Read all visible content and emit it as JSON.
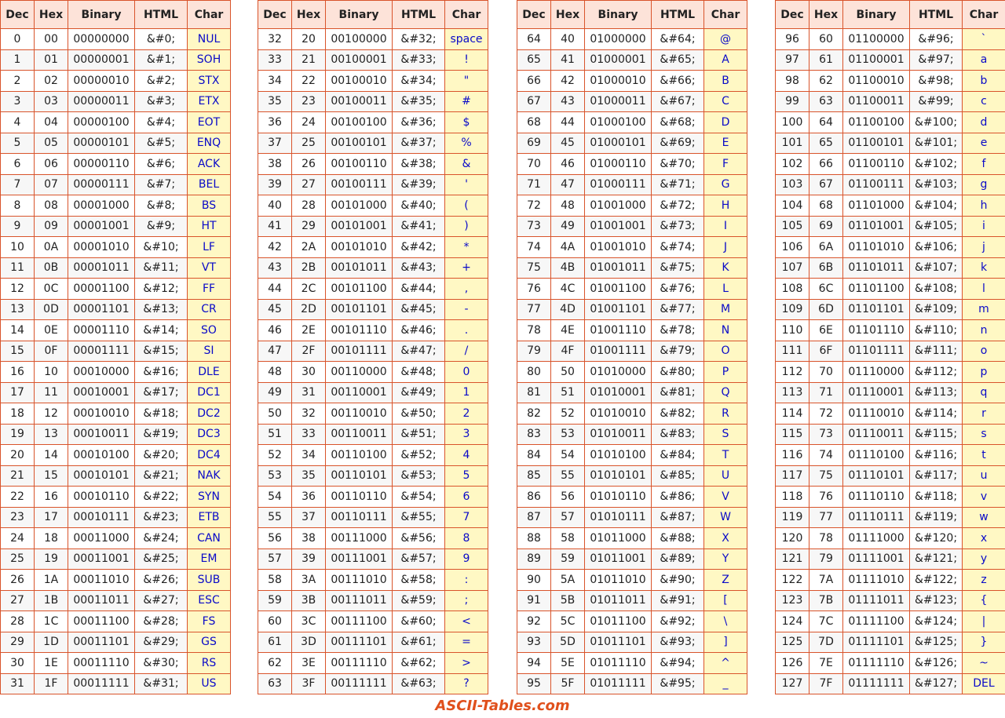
{
  "tables": [
    {
      "header": [
        "Dec",
        "Hex",
        "Binary",
        "HTML",
        "Char"
      ],
      "rows": [
        [
          "0",
          "00",
          "00000000",
          "&#0;",
          "NUL"
        ],
        [
          "1",
          "01",
          "00000001",
          "&#1;",
          "SOH"
        ],
        [
          "2",
          "02",
          "00000010",
          "&#2;",
          "STX"
        ],
        [
          "3",
          "03",
          "00000011",
          "&#3;",
          "ETX"
        ],
        [
          "4",
          "04",
          "00000100",
          "&#4;",
          "EOT"
        ],
        [
          "5",
          "05",
          "00000101",
          "&#5;",
          "ENQ"
        ],
        [
          "6",
          "06",
          "00000110",
          "&#6;",
          "ACK"
        ],
        [
          "7",
          "07",
          "00000111",
          "&#7;",
          "BEL"
        ],
        [
          "8",
          "08",
          "00001000",
          "&#8;",
          "BS"
        ],
        [
          "9",
          "09",
          "00001001",
          "&#9;",
          "HT"
        ],
        [
          "10",
          "0A",
          "00001010",
          "&#10;",
          "LF"
        ],
        [
          "11",
          "0B",
          "00001011",
          "&#11;",
          "VT"
        ],
        [
          "12",
          "0C",
          "00001100",
          "&#12;",
          "FF"
        ],
        [
          "13",
          "0D",
          "00001101",
          "&#13;",
          "CR"
        ],
        [
          "14",
          "0E",
          "00001110",
          "&#14;",
          "SO"
        ],
        [
          "15",
          "0F",
          "00001111",
          "&#15;",
          "SI"
        ],
        [
          "16",
          "10",
          "00010000",
          "&#16;",
          "DLE"
        ],
        [
          "17",
          "11",
          "00010001",
          "&#17;",
          "DC1"
        ],
        [
          "18",
          "12",
          "00010010",
          "&#18;",
          "DC2"
        ],
        [
          "19",
          "13",
          "00010011",
          "&#19;",
          "DC3"
        ],
        [
          "20",
          "14",
          "00010100",
          "&#20;",
          "DC4"
        ],
        [
          "21",
          "15",
          "00010101",
          "&#21;",
          "NAK"
        ],
        [
          "22",
          "16",
          "00010110",
          "&#22;",
          "SYN"
        ],
        [
          "23",
          "17",
          "00010111",
          "&#23;",
          "ETB"
        ],
        [
          "24",
          "18",
          "00011000",
          "&#24;",
          "CAN"
        ],
        [
          "25",
          "19",
          "00011001",
          "&#25;",
          "EM"
        ],
        [
          "26",
          "1A",
          "00011010",
          "&#26;",
          "SUB"
        ],
        [
          "27",
          "1B",
          "00011011",
          "&#27;",
          "ESC"
        ],
        [
          "28",
          "1C",
          "00011100",
          "&#28;",
          "FS"
        ],
        [
          "29",
          "1D",
          "00011101",
          "&#29;",
          "GS"
        ],
        [
          "30",
          "1E",
          "00011110",
          "&#30;",
          "RS"
        ],
        [
          "31",
          "1F",
          "00011111",
          "&#31;",
          "US"
        ]
      ]
    },
    {
      "header": [
        "Dec",
        "Hex",
        "Binary",
        "HTML",
        "Char"
      ],
      "rows": [
        [
          "32",
          "20",
          "00100000",
          "&#32;",
          "space"
        ],
        [
          "33",
          "21",
          "00100001",
          "&#33;",
          "!"
        ],
        [
          "34",
          "22",
          "00100010",
          "&#34;",
          "\""
        ],
        [
          "35",
          "23",
          "00100011",
          "&#35;",
          "#"
        ],
        [
          "36",
          "24",
          "00100100",
          "&#36;",
          "$"
        ],
        [
          "37",
          "25",
          "00100101",
          "&#37;",
          "%"
        ],
        [
          "38",
          "26",
          "00100110",
          "&#38;",
          "&"
        ],
        [
          "39",
          "27",
          "00100111",
          "&#39;",
          "'"
        ],
        [
          "40",
          "28",
          "00101000",
          "&#40;",
          "("
        ],
        [
          "41",
          "29",
          "00101001",
          "&#41;",
          ")"
        ],
        [
          "42",
          "2A",
          "00101010",
          "&#42;",
          "*"
        ],
        [
          "43",
          "2B",
          "00101011",
          "&#43;",
          "+"
        ],
        [
          "44",
          "2C",
          "00101100",
          "&#44;",
          ","
        ],
        [
          "45",
          "2D",
          "00101101",
          "&#45;",
          "-"
        ],
        [
          "46",
          "2E",
          "00101110",
          "&#46;",
          "."
        ],
        [
          "47",
          "2F",
          "00101111",
          "&#47;",
          "/"
        ],
        [
          "48",
          "30",
          "00110000",
          "&#48;",
          "0"
        ],
        [
          "49",
          "31",
          "00110001",
          "&#49;",
          "1"
        ],
        [
          "50",
          "32",
          "00110010",
          "&#50;",
          "2"
        ],
        [
          "51",
          "33",
          "00110011",
          "&#51;",
          "3"
        ],
        [
          "52",
          "34",
          "00110100",
          "&#52;",
          "4"
        ],
        [
          "53",
          "35",
          "00110101",
          "&#53;",
          "5"
        ],
        [
          "54",
          "36",
          "00110110",
          "&#54;",
          "6"
        ],
        [
          "55",
          "37",
          "00110111",
          "&#55;",
          "7"
        ],
        [
          "56",
          "38",
          "00111000",
          "&#56;",
          "8"
        ],
        [
          "57",
          "39",
          "00111001",
          "&#57;",
          "9"
        ],
        [
          "58",
          "3A",
          "00111010",
          "&#58;",
          ":"
        ],
        [
          "59",
          "3B",
          "00111011",
          "&#59;",
          ";"
        ],
        [
          "60",
          "3C",
          "00111100",
          "&#60;",
          "<"
        ],
        [
          "61",
          "3D",
          "00111101",
          "&#61;",
          "="
        ],
        [
          "62",
          "3E",
          "00111110",
          "&#62;",
          ">"
        ],
        [
          "63",
          "3F",
          "00111111",
          "&#63;",
          "?"
        ]
      ]
    },
    {
      "header": [
        "Dec",
        "Hex",
        "Binary",
        "HTML",
        "Char"
      ],
      "rows": [
        [
          "64",
          "40",
          "01000000",
          "&#64;",
          "@"
        ],
        [
          "65",
          "41",
          "01000001",
          "&#65;",
          "A"
        ],
        [
          "66",
          "42",
          "01000010",
          "&#66;",
          "B"
        ],
        [
          "67",
          "43",
          "01000011",
          "&#67;",
          "C"
        ],
        [
          "68",
          "44",
          "01000100",
          "&#68;",
          "D"
        ],
        [
          "69",
          "45",
          "01000101",
          "&#69;",
          "E"
        ],
        [
          "70",
          "46",
          "01000110",
          "&#70;",
          "F"
        ],
        [
          "71",
          "47",
          "01000111",
          "&#71;",
          "G"
        ],
        [
          "72",
          "48",
          "01001000",
          "&#72;",
          "H"
        ],
        [
          "73",
          "49",
          "01001001",
          "&#73;",
          "I"
        ],
        [
          "74",
          "4A",
          "01001010",
          "&#74;",
          "J"
        ],
        [
          "75",
          "4B",
          "01001011",
          "&#75;",
          "K"
        ],
        [
          "76",
          "4C",
          "01001100",
          "&#76;",
          "L"
        ],
        [
          "77",
          "4D",
          "01001101",
          "&#77;",
          "M"
        ],
        [
          "78",
          "4E",
          "01001110",
          "&#78;",
          "N"
        ],
        [
          "79",
          "4F",
          "01001111",
          "&#79;",
          "O"
        ],
        [
          "80",
          "50",
          "01010000",
          "&#80;",
          "P"
        ],
        [
          "81",
          "51",
          "01010001",
          "&#81;",
          "Q"
        ],
        [
          "82",
          "52",
          "01010010",
          "&#82;",
          "R"
        ],
        [
          "83",
          "53",
          "01010011",
          "&#83;",
          "S"
        ],
        [
          "84",
          "54",
          "01010100",
          "&#84;",
          "T"
        ],
        [
          "85",
          "55",
          "01010101",
          "&#85;",
          "U"
        ],
        [
          "86",
          "56",
          "01010110",
          "&#86;",
          "V"
        ],
        [
          "87",
          "57",
          "01010111",
          "&#87;",
          "W"
        ],
        [
          "88",
          "58",
          "01011000",
          "&#88;",
          "X"
        ],
        [
          "89",
          "59",
          "01011001",
          "&#89;",
          "Y"
        ],
        [
          "90",
          "5A",
          "01011010",
          "&#90;",
          "Z"
        ],
        [
          "91",
          "5B",
          "01011011",
          "&#91;",
          "["
        ],
        [
          "92",
          "5C",
          "01011100",
          "&#92;",
          "\\"
        ],
        [
          "93",
          "5D",
          "01011101",
          "&#93;",
          "]"
        ],
        [
          "94",
          "5E",
          "01011110",
          "&#94;",
          "^"
        ],
        [
          "95",
          "5F",
          "01011111",
          "&#95;",
          "_"
        ]
      ]
    },
    {
      "header": [
        "Dec",
        "Hex",
        "Binary",
        "HTML",
        "Char"
      ],
      "rows": [
        [
          "96",
          "60",
          "01100000",
          "&#96;",
          "`"
        ],
        [
          "97",
          "61",
          "01100001",
          "&#97;",
          "a"
        ],
        [
          "98",
          "62",
          "01100010",
          "&#98;",
          "b"
        ],
        [
          "99",
          "63",
          "01100011",
          "&#99;",
          "c"
        ],
        [
          "100",
          "64",
          "01100100",
          "&#100;",
          "d"
        ],
        [
          "101",
          "65",
          "01100101",
          "&#101;",
          "e"
        ],
        [
          "102",
          "66",
          "01100110",
          "&#102;",
          "f"
        ],
        [
          "103",
          "67",
          "01100111",
          "&#103;",
          "g"
        ],
        [
          "104",
          "68",
          "01101000",
          "&#104;",
          "h"
        ],
        [
          "105",
          "69",
          "01101001",
          "&#105;",
          "i"
        ],
        [
          "106",
          "6A",
          "01101010",
          "&#106;",
          "j"
        ],
        [
          "107",
          "6B",
          "01101011",
          "&#107;",
          "k"
        ],
        [
          "108",
          "6C",
          "01101100",
          "&#108;",
          "l"
        ],
        [
          "109",
          "6D",
          "01101101",
          "&#109;",
          "m"
        ],
        [
          "110",
          "6E",
          "01101110",
          "&#110;",
          "n"
        ],
        [
          "111",
          "6F",
          "01101111",
          "&#111;",
          "o"
        ],
        [
          "112",
          "70",
          "01110000",
          "&#112;",
          "p"
        ],
        [
          "113",
          "71",
          "01110001",
          "&#113;",
          "q"
        ],
        [
          "114",
          "72",
          "01110010",
          "&#114;",
          "r"
        ],
        [
          "115",
          "73",
          "01110011",
          "&#115;",
          "s"
        ],
        [
          "116",
          "74",
          "01110100",
          "&#116;",
          "t"
        ],
        [
          "117",
          "75",
          "01110101",
          "&#117;",
          "u"
        ],
        [
          "118",
          "76",
          "01110110",
          "&#118;",
          "v"
        ],
        [
          "119",
          "77",
          "01110111",
          "&#119;",
          "w"
        ],
        [
          "120",
          "78",
          "01111000",
          "&#120;",
          "x"
        ],
        [
          "121",
          "79",
          "01111001",
          "&#121;",
          "y"
        ],
        [
          "122",
          "7A",
          "01111010",
          "&#122;",
          "z"
        ],
        [
          "123",
          "7B",
          "01111011",
          "&#123;",
          "{"
        ],
        [
          "124",
          "7C",
          "01111100",
          "&#124;",
          "|"
        ],
        [
          "125",
          "7D",
          "01111101",
          "&#125;",
          "}"
        ],
        [
          "126",
          "7E",
          "01111110",
          "&#126;",
          "~"
        ],
        [
          "127",
          "7F",
          "01111111",
          "&#127;",
          "DEL"
        ]
      ]
    }
  ],
  "footer": "ASCII-Tables.com"
}
